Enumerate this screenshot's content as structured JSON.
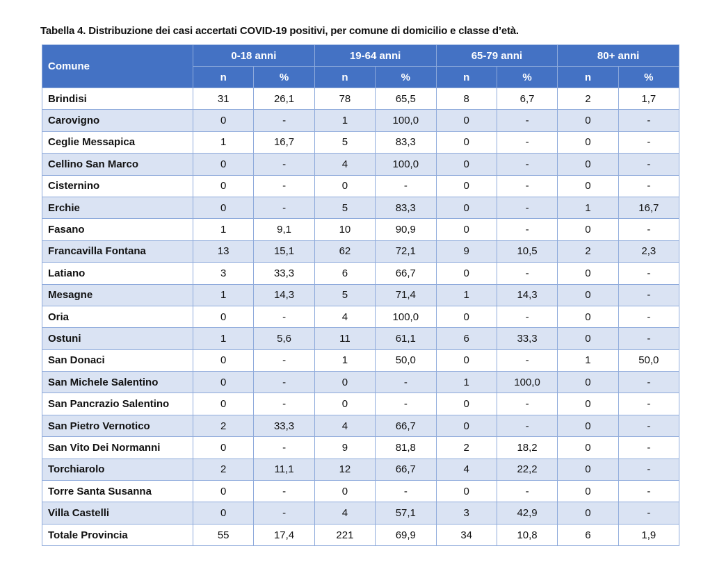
{
  "title": "Tabella 4. Distribuzione dei casi accertati COVID-19 positivi, per comune di domicilio e classe d’età.",
  "table": {
    "corner": "Comune",
    "groups": [
      "0-18 anni",
      "19-64 anni",
      "65-79 anni",
      "80+ anni"
    ],
    "subheaders": [
      "n",
      "%",
      "n",
      "%",
      "n",
      "%",
      "n",
      "%"
    ],
    "rows": [
      [
        "Brindisi",
        "31",
        "26,1",
        "78",
        "65,5",
        "8",
        "6,7",
        "2",
        "1,7"
      ],
      [
        "Carovigno",
        "0",
        "-",
        "1",
        "100,0",
        "0",
        "-",
        "0",
        "-"
      ],
      [
        "Ceglie Messapica",
        "1",
        "16,7",
        "5",
        "83,3",
        "0",
        "-",
        "0",
        "-"
      ],
      [
        "Cellino San Marco",
        "0",
        "-",
        "4",
        "100,0",
        "0",
        "-",
        "0",
        "-"
      ],
      [
        "Cisternino",
        "0",
        "-",
        "0",
        "-",
        "0",
        "-",
        "0",
        "-"
      ],
      [
        "Erchie",
        "0",
        "-",
        "5",
        "83,3",
        "0",
        "-",
        "1",
        "16,7"
      ],
      [
        "Fasano",
        "1",
        "9,1",
        "10",
        "90,9",
        "0",
        "-",
        "0",
        "-"
      ],
      [
        "Francavilla Fontana",
        "13",
        "15,1",
        "62",
        "72,1",
        "9",
        "10,5",
        "2",
        "2,3"
      ],
      [
        "Latiano",
        "3",
        "33,3",
        "6",
        "66,7",
        "0",
        "-",
        "0",
        "-"
      ],
      [
        "Mesagne",
        "1",
        "14,3",
        "5",
        "71,4",
        "1",
        "14,3",
        "0",
        "-"
      ],
      [
        "Oria",
        "0",
        "-",
        "4",
        "100,0",
        "0",
        "-",
        "0",
        "-"
      ],
      [
        "Ostuni",
        "1",
        "5,6",
        "11",
        "61,1",
        "6",
        "33,3",
        "0",
        "-"
      ],
      [
        "San Donaci",
        "0",
        "-",
        "1",
        "50,0",
        "0",
        "-",
        "1",
        "50,0"
      ],
      [
        "San Michele Salentino",
        "0",
        "-",
        "0",
        "-",
        "1",
        "100,0",
        "0",
        "-"
      ],
      [
        "San Pancrazio Salentino",
        "0",
        "-",
        "0",
        "-",
        "0",
        "-",
        "0",
        "-"
      ],
      [
        "San Pietro Vernotico",
        "2",
        "33,3",
        "4",
        "66,7",
        "0",
        "-",
        "0",
        "-"
      ],
      [
        "San Vito Dei Normanni",
        "0",
        "-",
        "9",
        "81,8",
        "2",
        "18,2",
        "0",
        "-"
      ],
      [
        "Torchiarolo",
        "2",
        "11,1",
        "12",
        "66,7",
        "4",
        "22,2",
        "0",
        "-"
      ],
      [
        "Torre Santa Susanna",
        "0",
        "-",
        "0",
        "-",
        "0",
        "-",
        "0",
        "-"
      ],
      [
        "Villa Castelli",
        "0",
        "-",
        "4",
        "57,1",
        "3",
        "42,9",
        "0",
        "-"
      ],
      [
        "Totale Provincia",
        "55",
        "17,4",
        "221",
        "69,9",
        "34",
        "10,8",
        "6",
        "1,9"
      ]
    ]
  }
}
